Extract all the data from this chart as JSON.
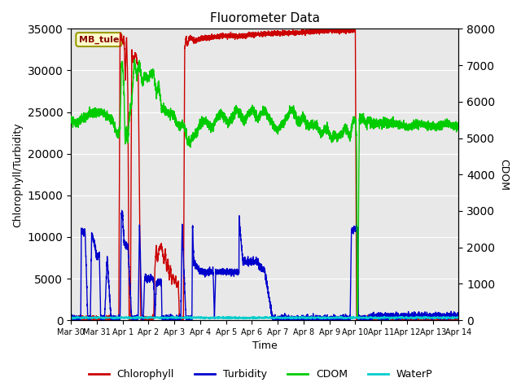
{
  "title": "Fluorometer Data",
  "xlabel": "Time",
  "ylabel_left": "Chlorophyll/Turbidity",
  "ylabel_right": "CDOM",
  "ylim_left": [
    0,
    35000
  ],
  "ylim_right": [
    0,
    8000
  ],
  "yticks_left": [
    0,
    5000,
    10000,
    15000,
    20000,
    25000,
    30000,
    35000
  ],
  "yticks_right": [
    0,
    1000,
    2000,
    3000,
    4000,
    5000,
    6000,
    7000,
    8000
  ],
  "background_color": "#ffffff",
  "plot_bg_color": "#e8e8e8",
  "grid_color": "#ffffff",
  "annotation_text": "MB_tule",
  "annotation_bg": "#ffffcc",
  "annotation_border": "#999900",
  "colors": {
    "chlorophyll": "#cc0000",
    "turbidity": "#0000cc",
    "cdom": "#00cc00",
    "waterp": "#00cccc"
  },
  "legend_labels": [
    "Chlorophyll",
    "Turbidity",
    "CDOM",
    "WaterP"
  ],
  "xtick_labels": [
    "Mar 30",
    "Mar 31",
    "Apr 1",
    "Apr 2",
    "Apr 3",
    "Apr 4",
    "Apr 5",
    "Apr 6",
    "Apr 7",
    "Apr 8",
    "Apr 9",
    "Apr 10",
    "Apr 11",
    "Apr 12",
    "Apr 13",
    "Apr 14"
  ],
  "xtick_positions": [
    0,
    1,
    2,
    3,
    4,
    5,
    6,
    7,
    8,
    9,
    10,
    11,
    12,
    13,
    14,
    15
  ]
}
